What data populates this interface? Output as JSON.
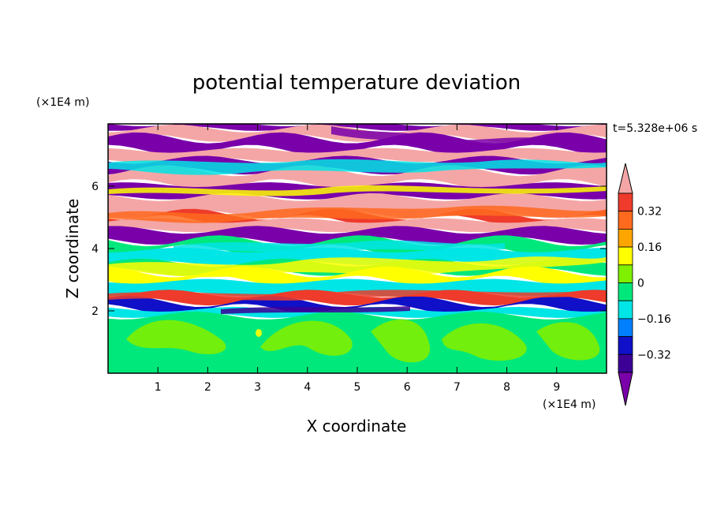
{
  "chart_data": {
    "type": "heatmap",
    "title": "potential temperature deviation",
    "xlabel": "X coordinate",
    "ylabel": "Z coordinate",
    "x_scale_label": "(×1E4 m)",
    "y_scale_label": "(×1E4 m)",
    "time_label": "t=5.328e+06 s",
    "xlim": [
      0,
      10
    ],
    "ylim": [
      0,
      8
    ],
    "x_ticks": [
      1,
      2,
      3,
      4,
      5,
      6,
      7,
      8,
      9
    ],
    "y_ticks": [
      2,
      4,
      6
    ],
    "colorbar": {
      "labels": [
        "0.32",
        "0.16",
        "0",
        "−0.16",
        "−0.32"
      ],
      "label_values": [
        0.32,
        0.16,
        0,
        -0.16,
        -0.32
      ],
      "levels": [
        0.4,
        0.32,
        0.24,
        0.16,
        0.08,
        0,
        -0.08,
        -0.16,
        -0.24,
        -0.32,
        -0.4
      ],
      "colors": [
        "#f4a6a6",
        "#ee3b2b",
        "#ff6a1f",
        "#ffa500",
        "#ffff00",
        "#7ff000",
        "#00e87c",
        "#00e5e5",
        "#0080ff",
        "#1010c8",
        "#3c0096",
        "#7a00aa"
      ]
    },
    "layers": [
      {
        "z": [
          7.85,
          8.0
        ],
        "value": "#7a00aa"
      },
      {
        "z": [
          7.55,
          7.85
        ],
        "value": "#f4a6a6"
      },
      {
        "z": [
          7.15,
          7.55
        ],
        "value": "#7a00aa"
      },
      {
        "z": [
          6.85,
          7.15
        ],
        "value": "#f4a6a6"
      },
      {
        "z": [
          6.5,
          6.85
        ],
        "value": "#7a00aa"
      },
      {
        "z": [
          6.05,
          6.5
        ],
        "value": "#f4a6a6"
      },
      {
        "z": [
          5.65,
          6.05
        ],
        "value": "#7a00aa"
      },
      {
        "z": [
          5.1,
          5.65
        ],
        "value": "#f4a6a6"
      },
      {
        "z": [
          4.9,
          5.1
        ],
        "value": "#ee3b2b"
      },
      {
        "z": [
          4.6,
          4.9
        ],
        "value": "#f4a6a6"
      },
      {
        "z": [
          4.25,
          4.6
        ],
        "value": "#7a00aa"
      },
      {
        "z": [
          3.95,
          4.25
        ],
        "value": "#00e87c"
      },
      {
        "z": [
          3.55,
          3.95
        ],
        "value": "#00e5e5"
      },
      {
        "z": [
          3.25,
          3.55
        ],
        "value": "#00e87c"
      },
      {
        "z": [
          2.95,
          3.25
        ],
        "value": "#ffff00"
      },
      {
        "z": [
          2.55,
          2.95
        ],
        "value": "#00e5e5"
      },
      {
        "z": [
          2.3,
          2.55
        ],
        "value": "#ee3b2b"
      },
      {
        "z": [
          2.05,
          2.3
        ],
        "value": "#1010c8"
      },
      {
        "z": [
          1.85,
          2.05
        ],
        "value": "#00e5e5"
      },
      {
        "z": [
          0,
          1.85
        ],
        "value": "#00e87c"
      }
    ]
  }
}
